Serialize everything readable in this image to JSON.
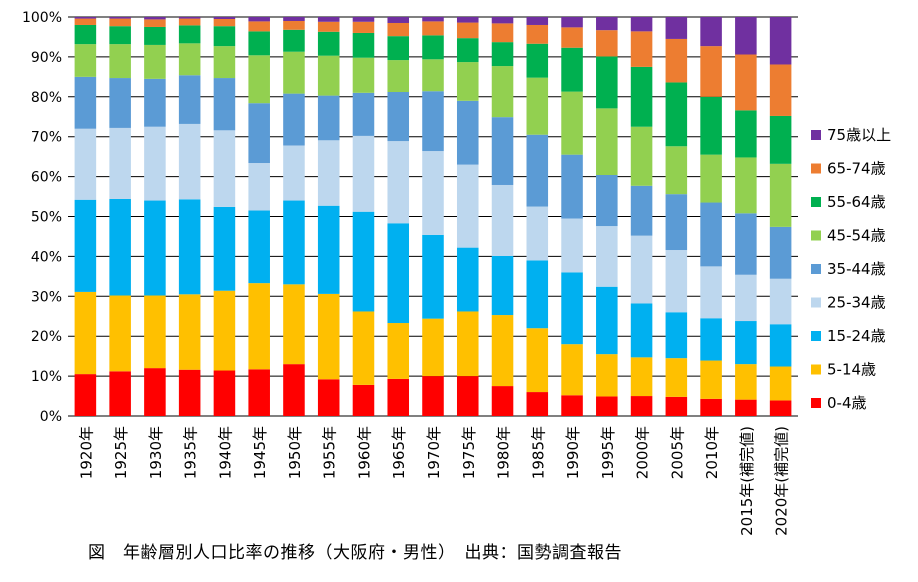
{
  "caption": "図　年齢層別人口比率の推移（大阪府・男性）　出典：国勢調査報告",
  "chart_data": {
    "type": "bar",
    "stacked": true,
    "percent": true,
    "categories": [
      "1920年",
      "1925年",
      "1930年",
      "1935年",
      "1940年",
      "1945年",
      "1950年",
      "1955年",
      "1960年",
      "1965年",
      "1970年",
      "1975年",
      "1980年",
      "1985年",
      "1990年",
      "1995年",
      "2000年",
      "2005年",
      "2010年",
      "2015年(補完値)",
      "2020年(補完値)"
    ],
    "ylim": [
      0,
      100
    ],
    "yticks": [
      0,
      10,
      20,
      30,
      40,
      50,
      60,
      70,
      80,
      90,
      100
    ],
    "ytick_labels": [
      "0%",
      "10%",
      "20%",
      "30%",
      "40%",
      "50%",
      "60%",
      "70%",
      "80%",
      "90%",
      "100%"
    ],
    "grid": true,
    "legend_position": "right",
    "series": [
      {
        "name": "0-4歳",
        "color": "#ff0000",
        "values": [
          10.5,
          11.2,
          12.0,
          11.6,
          11.4,
          11.7,
          13.0,
          9.2,
          7.8,
          9.3,
          10.0,
          10.0,
          7.5,
          6.0,
          5.2,
          4.9,
          5.0,
          4.8,
          4.3,
          4.1,
          3.9
        ]
      },
      {
        "name": "5-14歳",
        "color": "#ffc000",
        "values": [
          20.6,
          19.0,
          18.2,
          18.9,
          20.0,
          21.6,
          20.0,
          21.4,
          18.4,
          14.0,
          14.4,
          16.2,
          17.8,
          16.0,
          12.8,
          10.6,
          9.7,
          9.7,
          9.6,
          8.9,
          8.5
        ]
      },
      {
        "name": "15-24歳",
        "color": "#00b0f0",
        "values": [
          23.1,
          24.2,
          23.8,
          23.8,
          21.0,
          18.2,
          21.0,
          22.1,
          25.0,
          25.0,
          21.0,
          16.0,
          14.8,
          17.0,
          18.0,
          16.9,
          13.5,
          11.5,
          10.6,
          10.8,
          10.6
        ]
      },
      {
        "name": "25-34歳",
        "color": "#bdd7ee",
        "values": [
          17.8,
          17.8,
          18.5,
          18.9,
          19.2,
          11.9,
          13.8,
          16.4,
          19.0,
          20.6,
          21.0,
          20.8,
          17.8,
          13.5,
          13.5,
          15.2,
          17.0,
          15.6,
          13.0,
          11.6,
          11.4
        ]
      },
      {
        "name": "35-44歳",
        "color": "#5b9bd5",
        "values": [
          13.0,
          12.5,
          12.0,
          12.2,
          13.1,
          15.0,
          13.0,
          11.2,
          10.8,
          12.3,
          15.0,
          16.0,
          17.0,
          18.0,
          16.0,
          12.8,
          12.5,
          14.0,
          16.0,
          15.4,
          13.0
        ]
      },
      {
        "name": "45-54歳",
        "color": "#92d050",
        "values": [
          8.2,
          8.5,
          8.5,
          8.0,
          8.0,
          12.0,
          10.5,
          10.0,
          8.8,
          8.0,
          8.0,
          9.7,
          12.8,
          14.3,
          15.8,
          16.7,
          14.8,
          12.0,
          12.0,
          14.0,
          15.8
        ]
      },
      {
        "name": "55-64歳",
        "color": "#00b050",
        "values": [
          4.8,
          4.5,
          4.5,
          4.5,
          5.0,
          6.0,
          5.5,
          6.0,
          6.2,
          6.0,
          6.0,
          6.0,
          6.0,
          8.5,
          11.0,
          13.0,
          15.0,
          16.0,
          14.5,
          11.8,
          12.0
        ]
      },
      {
        "name": "65-74歳",
        "color": "#ed7d31",
        "values": [
          1.6,
          1.9,
          1.9,
          1.7,
          1.8,
          2.5,
          2.2,
          2.5,
          2.8,
          3.3,
          3.5,
          3.9,
          4.7,
          4.7,
          5.1,
          6.6,
          8.9,
          10.9,
          12.7,
          14.0,
          12.9
        ]
      },
      {
        "name": "75歳以上",
        "color": "#7030a0",
        "values": [
          0.4,
          0.4,
          0.6,
          0.4,
          0.5,
          1.1,
          1.0,
          1.2,
          1.2,
          1.5,
          1.1,
          1.4,
          1.6,
          2.0,
          2.6,
          3.3,
          3.6,
          5.5,
          7.3,
          9.4,
          11.9
        ]
      }
    ]
  }
}
